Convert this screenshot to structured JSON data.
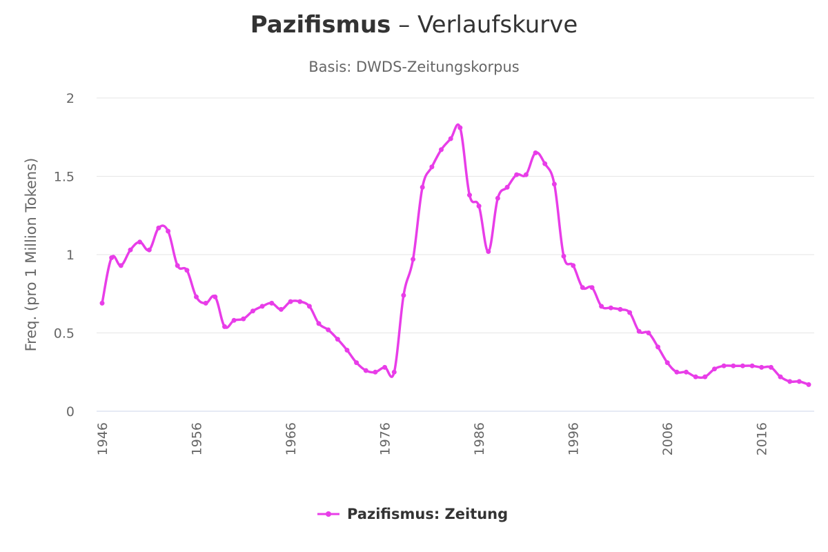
{
  "chart_data": {
    "type": "line",
    "title_term": "Pazifismus",
    "title_rest": " – Verlaufskurve",
    "subtitle": "Basis: DWDS-Zeitungskorpus",
    "ylabel": "Freq. (pro 1 Million Tokens)",
    "xlabel": "",
    "ylim": [
      0,
      2
    ],
    "xlim": [
      1946,
      2021
    ],
    "y_ticks": [
      0,
      0.5,
      1,
      1.5,
      2
    ],
    "y_tick_labels": [
      "0",
      "0.5",
      "1",
      "1.5",
      "2"
    ],
    "x_ticks": [
      1946,
      1956,
      1966,
      1976,
      1986,
      1996,
      2006,
      2016
    ],
    "x_tick_labels": [
      "1946",
      "1956",
      "1966",
      "1976",
      "1986",
      "1996",
      "2006",
      "2016"
    ],
    "grid": "horizontal",
    "legend_position": "bottom-center",
    "series": [
      {
        "name": "Pazifismus: Zeitung",
        "color": "#e83de8",
        "x": [
          1946,
          1947,
          1948,
          1949,
          1950,
          1951,
          1952,
          1953,
          1954,
          1955,
          1956,
          1957,
          1958,
          1959,
          1960,
          1961,
          1962,
          1963,
          1964,
          1965,
          1966,
          1967,
          1968,
          1969,
          1970,
          1971,
          1972,
          1973,
          1974,
          1975,
          1976,
          1977,
          1978,
          1979,
          1980,
          1981,
          1982,
          1983,
          1984,
          1985,
          1986,
          1987,
          1988,
          1989,
          1990,
          1991,
          1992,
          1993,
          1994,
          1995,
          1996,
          1997,
          1998,
          1999,
          2000,
          2001,
          2002,
          2003,
          2004,
          2005,
          2006,
          2007,
          2008,
          2009,
          2010,
          2011,
          2012,
          2013,
          2014,
          2015,
          2016,
          2017,
          2018,
          2019,
          2020,
          2021
        ],
        "y": [
          0.69,
          0.98,
          0.93,
          1.03,
          1.08,
          1.03,
          1.17,
          1.15,
          0.93,
          0.9,
          0.73,
          0.69,
          0.73,
          0.54,
          0.58,
          0.59,
          0.64,
          0.67,
          0.69,
          0.65,
          0.7,
          0.7,
          0.67,
          0.56,
          0.52,
          0.46,
          0.39,
          0.31,
          0.26,
          0.25,
          0.28,
          0.25,
          0.74,
          0.97,
          1.43,
          1.56,
          1.67,
          1.74,
          1.81,
          1.38,
          1.31,
          1.02,
          1.36,
          1.43,
          1.51,
          1.51,
          1.65,
          1.58,
          1.45,
          0.99,
          0.93,
          0.79,
          0.79,
          0.67,
          0.66,
          0.65,
          0.63,
          0.51,
          0.5,
          0.41,
          0.31,
          0.25,
          0.25,
          0.22,
          0.22,
          0.27,
          0.29,
          0.29,
          0.29,
          0.29,
          0.28,
          0.28,
          0.22,
          0.19,
          0.19,
          0.17
        ]
      }
    ]
  }
}
